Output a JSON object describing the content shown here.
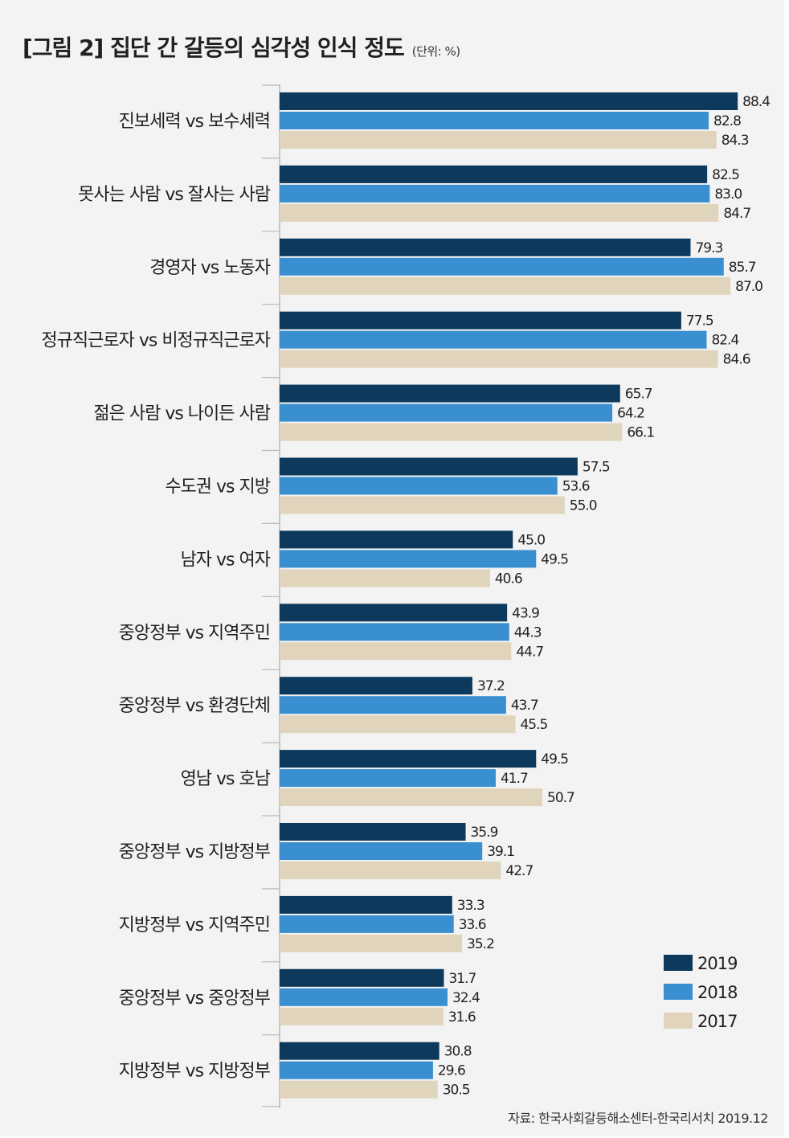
{
  "title": "[그림 2] 집단 간 갈등의 심각성 인식 정도",
  "unit": "(단위: %)",
  "source": "자료: 한국사회갈등해소센터-한국리서치 2019.12",
  "colors": {
    "2019": "#0d3a5c",
    "2018": "#3a8fd0",
    "2017": "#e0d4bc",
    "background": "#f3f3f3",
    "axis": "#b8b8b8"
  },
  "chart_data": {
    "type": "bar",
    "orientation": "horizontal",
    "xlim": [
      0,
      100
    ],
    "legend_position": "bottom-right",
    "categories": [
      "진보세력 vs 보수세력",
      "못사는 사람 vs 잘사는 사람",
      "경영자 vs 노동자",
      "정규직근로자 vs 비정규직근로자",
      "젊은 사람 vs 나이든 사람",
      "수도권 vs 지방",
      "남자 vs 여자",
      "중앙정부 vs 지역주민",
      "중앙정부 vs 환경단체",
      "영남 vs 호남",
      "중앙정부 vs 지방정부",
      "지방정부 vs 지역주민",
      "중앙정부 vs 중앙정부",
      "지방정부 vs 지방정부"
    ],
    "series": [
      {
        "name": "2019",
        "values": [
          88.4,
          82.5,
          79.3,
          77.5,
          65.7,
          57.5,
          45.0,
          43.9,
          37.2,
          49.5,
          35.9,
          33.3,
          31.7,
          30.8
        ],
        "labels": [
          "88.4",
          "82.5",
          "79.3",
          "77.5",
          "65.7",
          "57.5",
          "45.0",
          "43.9",
          "37.2",
          "49.5",
          "35.9",
          "33.3",
          "31.7",
          "30.8"
        ]
      },
      {
        "name": "2018",
        "values": [
          82.8,
          83.0,
          85.7,
          82.4,
          64.2,
          53.6,
          49.5,
          44.3,
          43.7,
          41.7,
          39.1,
          33.6,
          32.4,
          29.6
        ],
        "labels": [
          "82.8",
          "83.0",
          "85.7",
          "82.4",
          "64.2",
          "53.6",
          "49.5",
          "44.3",
          "43.7",
          "41.7",
          "39.1",
          "33.6",
          "32.4",
          "29.6"
        ]
      },
      {
        "name": "2017",
        "values": [
          84.3,
          84.7,
          87.0,
          84.6,
          66.1,
          55.0,
          40.6,
          44.7,
          45.5,
          50.7,
          42.7,
          35.2,
          31.6,
          30.5
        ],
        "labels": [
          "84.3",
          "84.7",
          "87.0",
          "84.6",
          "66.1",
          "55.0",
          "40.6",
          "44.7",
          "45.5",
          "50.7",
          "42.7",
          "35.2",
          "31.6",
          "30.5"
        ]
      }
    ]
  }
}
